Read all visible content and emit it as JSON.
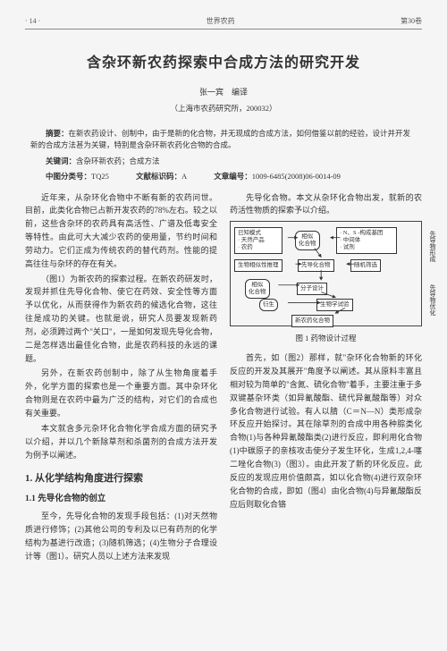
{
  "header": {
    "page_left": "· 14 ·",
    "journal": "世界农药",
    "volume": "第30卷"
  },
  "title": "含杂环新农药探索中合成方法的研究开发",
  "author": "张一宾　编译",
  "affiliation": "（上海市农药研究所，200032）",
  "abstract": {
    "label": "摘要：",
    "text": "在新农药设计、创制中，由于是新的化合物，并无现成的合成方法，如何借鉴以前的经验，设计并开发新的合成方法甚为关键，特别是含杂环新农药化合物的合成。"
  },
  "keywords": {
    "label": "关键词：",
    "text": "含杂环新农药；合成方法"
  },
  "meta": {
    "clc_label": "中图分类号：",
    "clc": "TQ25",
    "doc_code_label": "文献标识码：",
    "doc_code": "A",
    "article_id_label": "文章编号：",
    "article_id": "1009-6485(2008)06-0014-09"
  },
  "left_col": {
    "p1": "近年来，从杂环化合物中不断有新的农药问世。目前，此类化合物已占新开发农药的78%左右。较之以前，这些含杂环的农药具有高活性、广谱及低毒安全等特性。由此可大大减少农药的使用量，节约时间和劳动力。它们正成为传统农药的替代药剂。性能的提高往往与杂环的存在有关。",
    "p2": "（图1）为新农药的探索过程。在新农药研发时，发现并抓住先导化合物、使它在药效、安全性等方面予以优化，从而获得作为新农药的候选化合物，这往往是成功的关键。也就是说，研究人员要发现新药剂，必须跨过两个\"关口\"，一是如何发现先导化合物，二是怎样选出最佳化合物，此是农药科技的永远的课题。",
    "p3": "另外，在新农药创制中，除了从生物角度着手外，化学方面的探索也是一个重要方面。其中杂环化合物则是在农药中最为广泛的结构，对它们的合成也有关重要。",
    "p4": "本文就含多元杂环化合物化学合成方面的研究予以介绍，并以几个新除草剂和杀菌剂的合成方法开发为例予以阐述。",
    "h1": "1. 从化学结构角度进行探索",
    "h2": "1.1  先导化合物的创立",
    "p5": "至今，先导化合物的发现手段包括：(1)对天然物质进行修饰；(2)其他公司的专利及以已有药剂的化学结构为基进行改造；(3)随机筛选；(4)生物分子合理设计等（图1）。研究人员以上述方法来发现"
  },
  "right_col": {
    "p1": "先导化合物。本文从杂环化合物出发，就新的农药活性物质的探索予以介绍。",
    "fig_caption": "图 1  药物设计过程",
    "p2": "首先，如（图2）那样，就\"杂环化合物新的环化反应的开发及其展开\"角度予以阐述。其从原料丰富且相对较为简单的\"含氮、硫化合物\"着手，主要注重于多双键基杂环类（如异氰酸酯、硫代异氰酸酯等）对众多化合物进行试验。有人以腈（C＝N—N）类形成杂环反应开始探讨。其在除草剂的合成中用各种腙类化合物(1)与各种异氰酸酯类(2)进行反应，即利用化合物(1)中碳原子的亲核攻击使分子发生环化，生成1,2,4-噻二唑化合物(3)（图3）。由此开发了新的环化反应。此反应的发现应用价值颇高，如以化合物(4)进行双杂环化合物的合成，即如（图4）由化合物(4)与异氰酸酯反应后则取化合铬"
  },
  "figure": {
    "nodes": {
      "n1": "已知模式\n· 天然产品\n· 农药",
      "n2": "相似\n化合物",
      "n3": "· N、S -构成基团\n· 中间体\n· 试剂",
      "n4": "生物相似性推理",
      "n5": "先导化合物",
      "n6": "随机筛选",
      "n7": "相似\n化合物",
      "n8": "分子设计",
      "n9": "衍生",
      "n10": "生物学试验",
      "n11": "新农药化合物"
    },
    "side1": "先导物形成",
    "side2": "先导物优化",
    "colors": {
      "border": "#333333",
      "bg": "#ffffff"
    }
  }
}
